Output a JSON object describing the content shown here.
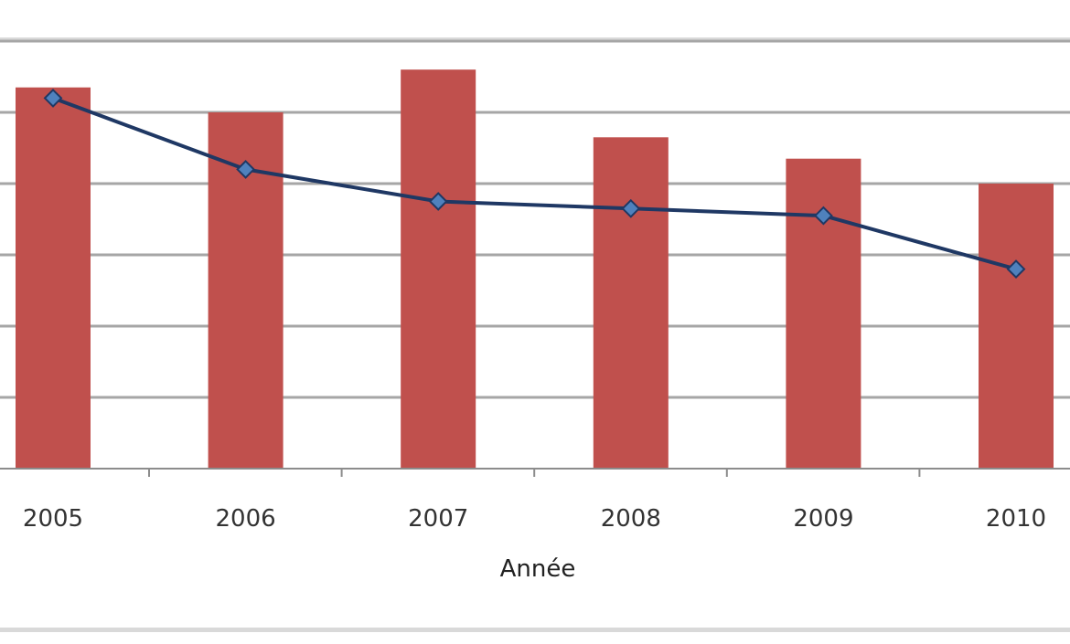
{
  "chart_data": {
    "type": "bar+line",
    "title": "",
    "xlabel": "Année",
    "ylabel": "",
    "categories": [
      "2005",
      "2006",
      "2007",
      "2008",
      "2009",
      "2010"
    ],
    "ylim": [
      0,
      6
    ],
    "grid": true,
    "series": [
      {
        "type": "bar",
        "values": [
          5.35,
          5.0,
          5.6,
          4.65,
          4.35,
          4.0
        ],
        "color": "#c0504d"
      },
      {
        "type": "line",
        "values": [
          5.2,
          4.2,
          3.75,
          3.65,
          3.55,
          2.8
        ],
        "color": "#1f3864",
        "marker": "diamond",
        "marker_color": "#4f81bd"
      }
    ]
  }
}
